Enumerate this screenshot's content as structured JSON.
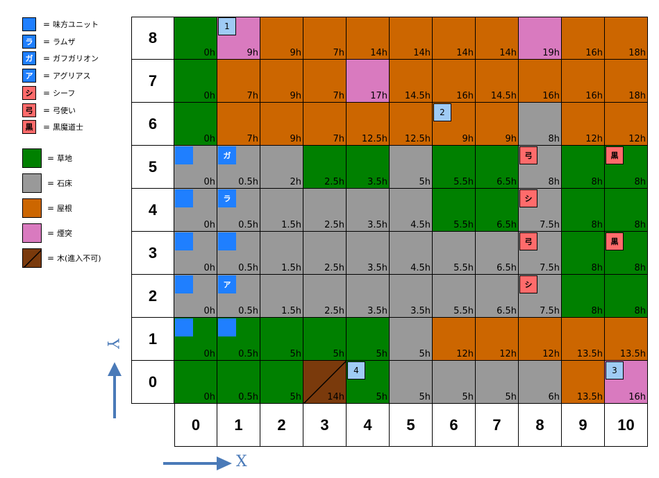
{
  "colors": {
    "grass": "#008000",
    "stone": "#999999",
    "roof": "#cc6600",
    "chimney": "#d97abf",
    "tree": "#7a3a0c",
    "ally": "#1f7fff",
    "enemy": "#ff6b6b",
    "marker_num": "#9fcbf5",
    "arrow": "#4a7ab8"
  },
  "legend": {
    "units": [
      {
        "char": "",
        "label": "味方ユニット",
        "type": "ally"
      },
      {
        "char": "ラ",
        "label": "ラムザ",
        "type": "ally"
      },
      {
        "char": "ガ",
        "label": "ガフガリオン",
        "type": "ally"
      },
      {
        "char": "ア",
        "label": "アグリアス",
        "type": "ally"
      },
      {
        "char": "シ",
        "label": "シーフ",
        "type": "enemy"
      },
      {
        "char": "弓",
        "label": "弓使い",
        "type": "enemy"
      },
      {
        "char": "黒",
        "label": "黒魔道士",
        "type": "enemy"
      }
    ],
    "terrain": [
      {
        "key": "grass",
        "label": "草地"
      },
      {
        "key": "stone",
        "label": "石床"
      },
      {
        "key": "roof",
        "label": "屋根"
      },
      {
        "key": "chimney",
        "label": "煙突"
      },
      {
        "key": "tree",
        "label": "木(進入不可)"
      }
    ],
    "eq": "="
  },
  "axes": {
    "x_labels": [
      "0",
      "1",
      "2",
      "3",
      "4",
      "5",
      "6",
      "7",
      "8",
      "9",
      "10"
    ],
    "y_labels": [
      "8",
      "7",
      "6",
      "5",
      "4",
      "3",
      "2",
      "1",
      "0"
    ],
    "x_arrow_label": "X",
    "y_arrow_label": "Y"
  },
  "grid": {
    "terrain": [
      [
        "G",
        "C",
        "R",
        "R",
        "R",
        "R",
        "R",
        "R",
        "C",
        "R",
        "R"
      ],
      [
        "G",
        "R",
        "R",
        "R",
        "C",
        "R",
        "R",
        "R",
        "R",
        "R",
        "R"
      ],
      [
        "G",
        "R",
        "R",
        "R",
        "R",
        "R",
        "R",
        "R",
        "S",
        "R",
        "R"
      ],
      [
        "S",
        "S",
        "S",
        "G",
        "G",
        "S",
        "G",
        "G",
        "S",
        "G",
        "G"
      ],
      [
        "S",
        "S",
        "S",
        "S",
        "S",
        "S",
        "G",
        "G",
        "S",
        "G",
        "G"
      ],
      [
        "S",
        "S",
        "S",
        "S",
        "S",
        "S",
        "S",
        "S",
        "S",
        "G",
        "G"
      ],
      [
        "S",
        "S",
        "S",
        "S",
        "S",
        "S",
        "S",
        "S",
        "S",
        "G",
        "G"
      ],
      [
        "G",
        "G",
        "G",
        "G",
        "G",
        "S",
        "R",
        "R",
        "R",
        "R",
        "R"
      ],
      [
        "G",
        "G",
        "G",
        "T",
        "G",
        "S",
        "S",
        "S",
        "S",
        "R",
        "C"
      ]
    ],
    "costs": [
      [
        "0h",
        "9h",
        "9h",
        "7h",
        "14h",
        "14h",
        "14h",
        "14h",
        "19h",
        "16h",
        "18h"
      ],
      [
        "0h",
        "7h",
        "9h",
        "7h",
        "17h",
        "14.5h",
        "16h",
        "14.5h",
        "16h",
        "16h",
        "18h"
      ],
      [
        "0h",
        "7h",
        "9h",
        "7h",
        "12.5h",
        "12.5h",
        "9h",
        "9h",
        "8h",
        "12h",
        "12h"
      ],
      [
        "0h",
        "0.5h",
        "2h",
        "2.5h",
        "3.5h",
        "5h",
        "5.5h",
        "6.5h",
        "8h",
        "8h",
        "8h"
      ],
      [
        "0h",
        "0.5h",
        "1.5h",
        "2.5h",
        "3.5h",
        "4.5h",
        "5.5h",
        "6.5h",
        "7.5h",
        "8h",
        "8h"
      ],
      [
        "0h",
        "0.5h",
        "1.5h",
        "2.5h",
        "3.5h",
        "4.5h",
        "5.5h",
        "6.5h",
        "7.5h",
        "8h",
        "8h"
      ],
      [
        "0h",
        "0.5h",
        "1.5h",
        "2.5h",
        "3.5h",
        "3.5h",
        "5.5h",
        "6.5h",
        "7.5h",
        "8h",
        "8h"
      ],
      [
        "0h",
        "0.5h",
        "5h",
        "5h",
        "5h",
        "5h",
        "12h",
        "12h",
        "12h",
        "13.5h",
        "13.5h"
      ],
      [
        "0h",
        "0.5h",
        "5h",
        "14h",
        "5h",
        "5h",
        "5h",
        "5h",
        "6h",
        "13.5h",
        "16h"
      ]
    ]
  },
  "markers": [
    {
      "x": 1,
      "y": 8,
      "text": "1",
      "kind": "num"
    },
    {
      "x": 6,
      "y": 6,
      "text": "2",
      "kind": "num"
    },
    {
      "x": 10,
      "y": 0,
      "text": "3",
      "kind": "num"
    },
    {
      "x": 4,
      "y": 0,
      "text": "4",
      "kind": "num"
    },
    {
      "x": 0,
      "y": 5,
      "text": "",
      "kind": "ally"
    },
    {
      "x": 1,
      "y": 5,
      "text": "ガ",
      "kind": "ally"
    },
    {
      "x": 0,
      "y": 4,
      "text": "",
      "kind": "ally"
    },
    {
      "x": 1,
      "y": 4,
      "text": "ラ",
      "kind": "ally"
    },
    {
      "x": 0,
      "y": 3,
      "text": "",
      "kind": "ally"
    },
    {
      "x": 1,
      "y": 3,
      "text": "",
      "kind": "ally"
    },
    {
      "x": 0,
      "y": 2,
      "text": "",
      "kind": "ally"
    },
    {
      "x": 1,
      "y": 2,
      "text": "ア",
      "kind": "ally"
    },
    {
      "x": 0,
      "y": 1,
      "text": "",
      "kind": "ally"
    },
    {
      "x": 1,
      "y": 1,
      "text": "",
      "kind": "ally"
    },
    {
      "x": 8,
      "y": 5,
      "text": "弓",
      "kind": "enemy"
    },
    {
      "x": 10,
      "y": 5,
      "text": "黒",
      "kind": "enemy"
    },
    {
      "x": 8,
      "y": 4,
      "text": "シ",
      "kind": "enemy"
    },
    {
      "x": 8,
      "y": 3,
      "text": "弓",
      "kind": "enemy"
    },
    {
      "x": 10,
      "y": 3,
      "text": "黒",
      "kind": "enemy"
    },
    {
      "x": 8,
      "y": 2,
      "text": "シ",
      "kind": "enemy"
    }
  ]
}
